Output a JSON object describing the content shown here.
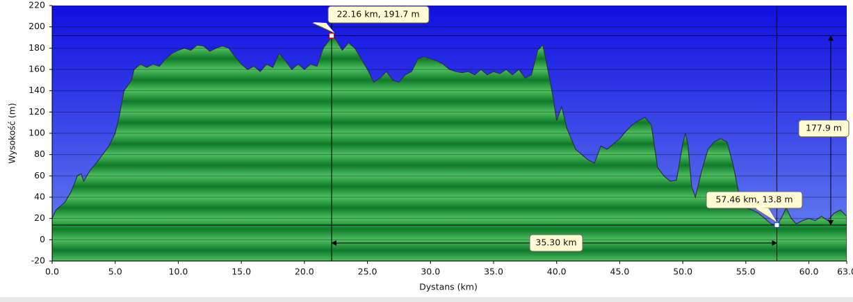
{
  "chart_data": {
    "type": "area",
    "x_label": "Dystans   (km)",
    "y_label": "Wysokość (m)",
    "x": [
      0,
      0.3,
      1,
      1.5,
      2,
      2.3,
      2.5,
      3,
      3.5,
      4,
      4.5,
      5,
      5.3,
      5.7,
      6,
      6.3,
      6.5,
      7,
      7.5,
      8,
      8.5,
      9,
      9.5,
      10,
      10.5,
      11,
      11.5,
      12,
      12.5,
      13,
      13.5,
      14,
      14.5,
      15,
      15.5,
      16,
      16.5,
      17,
      17.5,
      18,
      18.5,
      19,
      19.5,
      20,
      20.5,
      21,
      21.5,
      22,
      22.16,
      22.5,
      23,
      23.5,
      24,
      24.5,
      25,
      25.5,
      26,
      26.5,
      27,
      27.5,
      28,
      28.5,
      29,
      29.5,
      30,
      30.5,
      31,
      31.5,
      32,
      32.5,
      33,
      33.5,
      34,
      34.5,
      35,
      35.5,
      36,
      36.5,
      37,
      37.5,
      38,
      38.5,
      38.9,
      39.3,
      39.7,
      40,
      40.4,
      40.8,
      41.5,
      42,
      42.5,
      43,
      43.5,
      44,
      44.5,
      45,
      45.5,
      46,
      46.5,
      47,
      47.5,
      48,
      48.5,
      49,
      49.5,
      50,
      50.2,
      50.4,
      50.7,
      51,
      51.5,
      52,
      52.5,
      53,
      53.5,
      54,
      54.5,
      55,
      55.5,
      56,
      56.5,
      57,
      57.46,
      57.8,
      58.2,
      58.6,
      59,
      59.5,
      60,
      60.5,
      61,
      61.5,
      62,
      62.5,
      63
    ],
    "values": [
      20,
      28,
      35,
      45,
      60,
      62,
      55,
      65,
      72,
      80,
      88,
      100,
      115,
      140,
      145,
      150,
      160,
      165,
      162,
      165,
      163,
      170,
      175,
      178,
      180,
      178,
      183,
      182,
      177,
      180,
      182,
      180,
      172,
      165,
      160,
      163,
      158,
      165,
      162,
      175,
      168,
      160,
      165,
      160,
      165,
      163,
      180,
      188,
      191.7,
      188,
      178,
      185,
      180,
      170,
      160,
      148,
      152,
      158,
      150,
      148,
      155,
      158,
      170,
      172,
      170,
      168,
      165,
      160,
      158,
      157,
      158,
      155,
      160,
      155,
      158,
      156,
      160,
      155,
      160,
      152,
      155,
      178,
      183,
      160,
      135,
      112,
      125,
      105,
      85,
      80,
      75,
      72,
      88,
      85,
      90,
      95,
      102,
      108,
      112,
      115,
      108,
      68,
      60,
      55,
      56,
      90,
      100,
      90,
      50,
      40,
      65,
      85,
      92,
      95,
      92,
      70,
      40,
      30,
      28,
      25,
      20,
      15,
      13.8,
      20,
      30,
      20,
      15,
      18,
      20,
      18,
      22,
      18,
      25,
      28,
      22
    ],
    "color": "#1f9a3c",
    "xlim": [
      0,
      63
    ],
    "ylim": [
      -20,
      220
    ],
    "xticks": [
      {
        "value": 0,
        "label": "0.0"
      },
      {
        "value": 5,
        "label": "5.0"
      },
      {
        "value": 10,
        "label": "10.0"
      },
      {
        "value": 15,
        "label": "15.0"
      },
      {
        "value": 20,
        "label": "20.0"
      },
      {
        "value": 25,
        "label": "25.0"
      },
      {
        "value": 30,
        "label": "30.0"
      },
      {
        "value": 35,
        "label": "35.0"
      },
      {
        "value": 40,
        "label": "40.0"
      },
      {
        "value": 45,
        "label": "45.0"
      },
      {
        "value": 50,
        "label": "50.0"
      },
      {
        "value": 55,
        "label": "55.0"
      },
      {
        "value": 60,
        "label": "60.0"
      },
      {
        "value": 63,
        "label": "63.0"
      }
    ],
    "yticks": [
      -20,
      0,
      20,
      40,
      60,
      80,
      100,
      120,
      140,
      160,
      180,
      200,
      220
    ],
    "grid": true,
    "markers": [
      {
        "x": 22.16,
        "y": 191.7,
        "label": "22.16 km, 191.7 m"
      },
      {
        "x": 57.46,
        "y": 13.8,
        "label": "57.46 km, 13.8 m"
      }
    ],
    "distance_label": "35.30 km",
    "elevation_label": "177.9 m"
  }
}
